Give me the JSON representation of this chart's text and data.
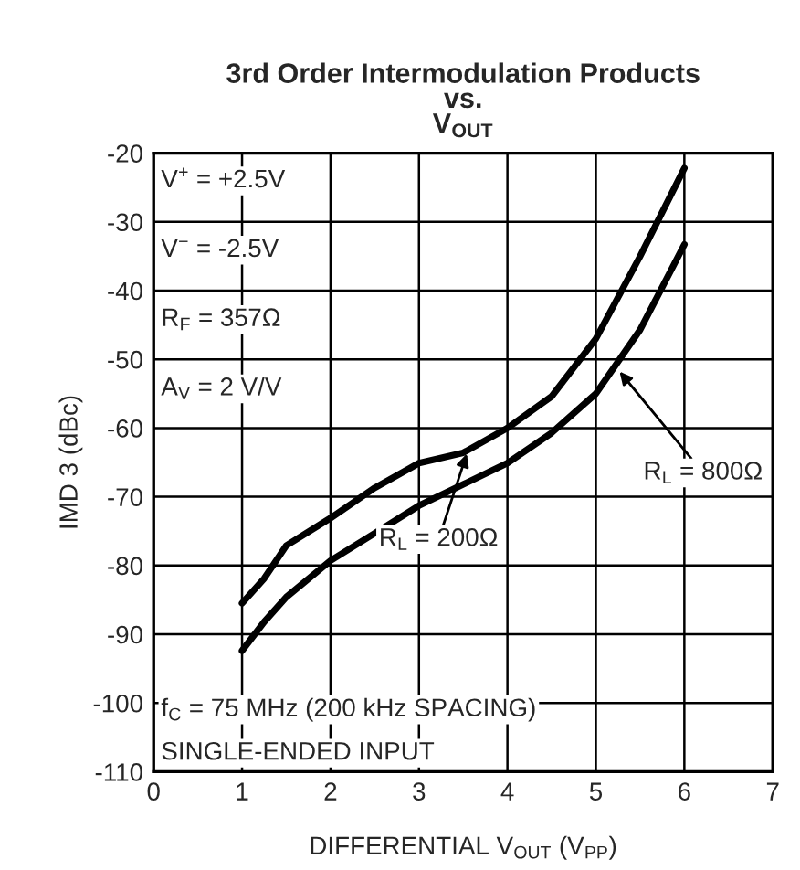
{
  "chart_data": {
    "type": "line",
    "title": "3rd Order Intermodulation Products\nvs.\nV$_{OUT}$",
    "xlabel": "DIFFERENTIAL V$_{OUT}$ (V$_{PP}$)",
    "ylabel": "IMD 3 (dBc)",
    "x": [
      1,
      1.25,
      1.5,
      2,
      2.5,
      3,
      3.5,
      4,
      4.5,
      5,
      5.5,
      6
    ],
    "series": [
      {
        "color": "#000000",
        "values": [
          -85.5,
          -81.9,
          -77.1,
          -73.1,
          -68.7,
          -65.1,
          -63.6,
          -60.0,
          -55.4,
          -47.0,
          -35.0,
          -22.2
        ]
      },
      {
        "color": "#000000",
        "values": [
          -92.4,
          -88.2,
          -84.6,
          -79.3,
          -75.3,
          -71.3,
          -68.2,
          -65.1,
          -60.7,
          -55.0,
          -45.7,
          -33.3
        ]
      }
    ],
    "xlim": [
      0,
      7
    ],
    "xticks": [
      0,
      1,
      2,
      3,
      4,
      5,
      6,
      7
    ],
    "ylim": [
      -110,
      -20
    ],
    "yticks": [
      -110,
      -100,
      -90,
      -80,
      -70,
      -60,
      -50,
      -40,
      -30,
      -20
    ],
    "grid": true,
    "marker": "none",
    "line_style": "solid",
    "annotations": [
      "V$^{+}$ = +2.5V",
      "V$^{−}$ = -2.5V",
      "R$_{F}$ = 357Ω",
      "A$_{V}$ = 2 V/V",
      "f$_{C}$ = 75 MHz (200 kHz SPACING)",
      "SINGLE-ENDED INPUT",
      {
        "text": "R$_{L}$ = 800Ω",
        "x": 5.25,
        "y": -51.5
      },
      {
        "text": "R$_{L}$ = 200Ω",
        "x": 3.55,
        "y": -63.4
      }
    ]
  }
}
